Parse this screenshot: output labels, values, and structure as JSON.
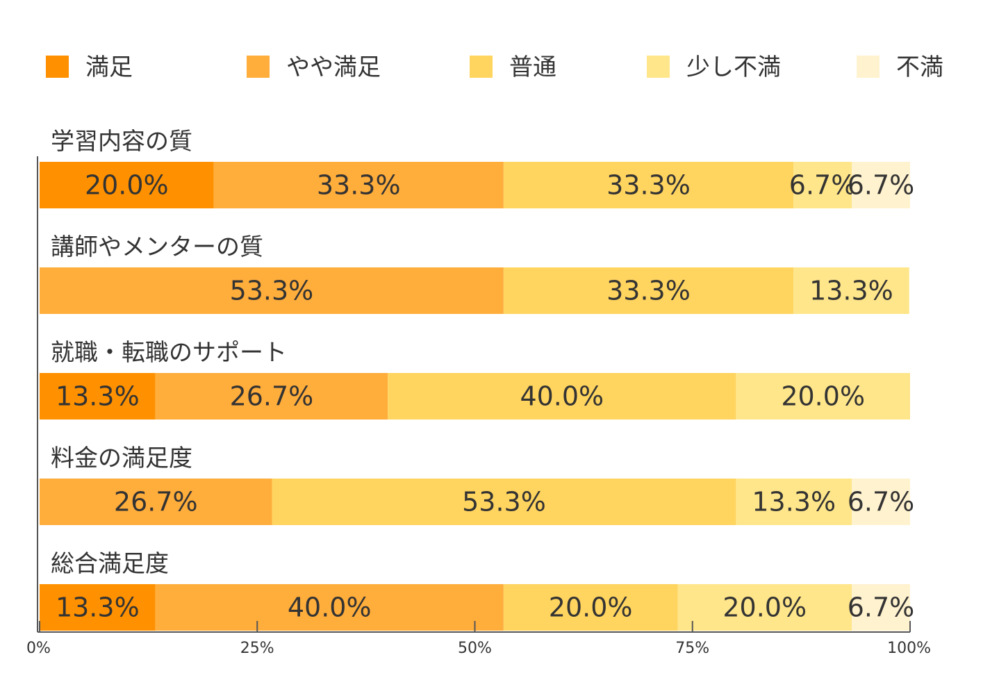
{
  "chart_data": {
    "type": "bar",
    "orientation": "horizontal",
    "stacked": true,
    "legend_position": "top",
    "categories": [
      "学習内容の質",
      "講師やメンターの質",
      "就職・転職のサポート",
      "料金の満足度",
      "総合満足度"
    ],
    "series": [
      {
        "name": "満足",
        "color": "#FF9100",
        "values": [
          20.0,
          0,
          13.3,
          0,
          13.3
        ]
      },
      {
        "name": "やや満足",
        "color": "#FFAD3B",
        "values": [
          33.3,
          53.3,
          26.7,
          26.7,
          40.0
        ]
      },
      {
        "name": "普通",
        "color": "#FFD45F",
        "values": [
          33.3,
          33.3,
          40.0,
          53.3,
          20.0
        ]
      },
      {
        "name": "少し不満",
        "color": "#FFE68A",
        "values": [
          6.7,
          13.3,
          20.0,
          13.3,
          20.0
        ]
      },
      {
        "name": "不満",
        "color": "#FFF2CF",
        "values": [
          6.7,
          0,
          0,
          6.7,
          6.7
        ]
      }
    ],
    "xlim": [
      0,
      100
    ],
    "x_ticks": [
      0,
      25,
      50,
      75,
      100
    ],
    "x_tick_labels": [
      "0%",
      "25%",
      "50%",
      "75%",
      "100%"
    ],
    "value_format": "%"
  }
}
